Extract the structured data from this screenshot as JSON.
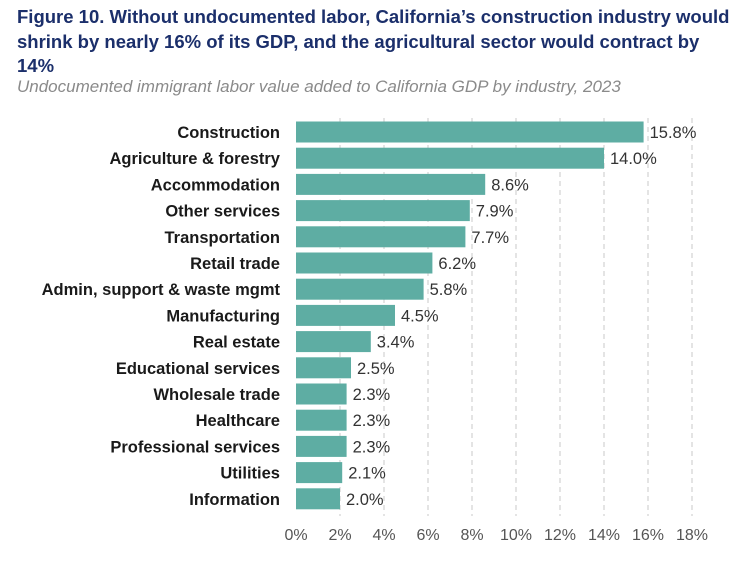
{
  "figure": {
    "title": "Figure 10. Without undocumented labor, California’s construction industry would shrink by nearly 16% of its GDP, and the agricultural sector would contract by 14%",
    "subtitle": "Undocumented immigrant labor value added to California GDP by industry, 2023"
  },
  "chart_data": {
    "type": "bar",
    "orientation": "horizontal",
    "title": "Figure 10. Without undocumented labor, California’s construction industry would shrink by nearly 16% of its GDP, and the agricultural sector would contract by 14%",
    "subtitle": "Undocumented immigrant labor value added to California GDP by industry, 2023",
    "xlabel": "",
    "ylabel": "",
    "categories": [
      "Construction",
      "Agriculture & forestry",
      "Accommodation",
      "Other services",
      "Transportation",
      "Retail trade",
      "Admin, support & waste mgmt",
      "Manufacturing",
      "Real estate",
      "Educational services",
      "Wholesale trade",
      "Healthcare",
      "Professional services",
      "Utilities",
      "Information"
    ],
    "values": [
      15.8,
      14.0,
      8.6,
      7.9,
      7.7,
      6.2,
      5.8,
      4.5,
      3.4,
      2.5,
      2.3,
      2.3,
      2.3,
      2.1,
      2.0
    ],
    "value_labels": [
      "15.8%",
      "14.0%",
      "8.6%",
      "7.9%",
      "7.7%",
      "6.2%",
      "5.8%",
      "4.5%",
      "3.4%",
      "2.5%",
      "2.3%",
      "2.3%",
      "2.3%",
      "2.1%",
      "2.0%"
    ],
    "x_ticks": [
      0,
      2,
      4,
      6,
      8,
      10,
      12,
      14,
      16,
      18
    ],
    "x_tick_labels": [
      "0%",
      "2%",
      "4%",
      "6%",
      "8%",
      "10%",
      "12%",
      "14%",
      "16%",
      "18%"
    ],
    "xlim": [
      0,
      18
    ],
    "grid": "vertical dashed",
    "legend": "none",
    "bar_color": "#5eada3"
  }
}
